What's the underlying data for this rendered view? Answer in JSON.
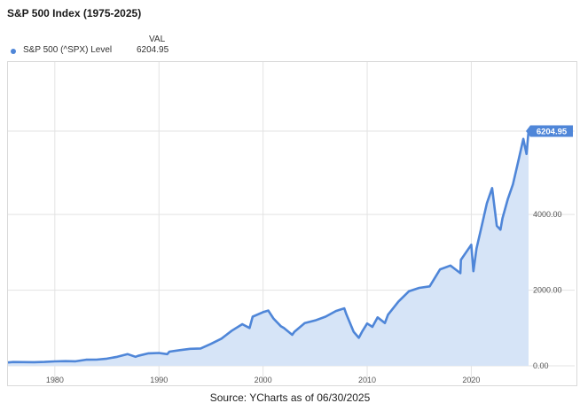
{
  "title": "S&P 500 Index (1975-2025)",
  "legend": {
    "column_header": "VAL",
    "series_label": "S&P 500 (^SPX) Level",
    "value_text": "6204.95"
  },
  "source": "Source: YCharts as of 06/30/2025",
  "colors": {
    "line": "#4f86d8",
    "fill": "#d6e4f7",
    "grid": "#e3e3e3",
    "label_bg": "#4f86d8"
  },
  "chart_data": {
    "type": "area",
    "title": "S&P 500 Index (1975-2025)",
    "xlabel": "",
    "ylabel": "",
    "xlim": [
      1975.5,
      2025.5
    ],
    "ylim": [
      0,
      6204.95
    ],
    "x_ticks": [
      1980,
      1990,
      2000,
      2010,
      2020
    ],
    "x_tick_labels": [
      "1980",
      "1990",
      "2000",
      "2010",
      "2020"
    ],
    "y_ticks": [
      0,
      2000,
      4000
    ],
    "y_tick_labels": [
      "0.00",
      "2000.00",
      "4000.00"
    ],
    "grid": true,
    "legend_position": "top-left",
    "last_value_label": "6204.95",
    "series": [
      {
        "name": "S&P 500 (^SPX) Level",
        "x": [
          1975.5,
          1976,
          1977,
          1978,
          1979,
          1980,
          1981,
          1982,
          1983,
          1984,
          1985,
          1986,
          1987,
          1987.75,
          1988,
          1989,
          1990,
          1990.8,
          1991,
          1992,
          1993,
          1994,
          1995,
          1996,
          1997,
          1998,
          1998.7,
          1999,
          2000,
          2000.5,
          2001,
          2001.7,
          2002,
          2002.8,
          2003,
          2004,
          2005,
          2006,
          2007,
          2007.8,
          2008,
          2008.7,
          2009.2,
          2009.5,
          2010,
          2010.5,
          2011,
          2011.7,
          2012,
          2013,
          2014,
          2015,
          2016,
          2017,
          2018,
          2018.95,
          2019,
          2020,
          2020.2,
          2020.5,
          2021,
          2021.5,
          2022,
          2022.45,
          2022.8,
          2023,
          2023.5,
          2024,
          2024.5,
          2025,
          2025.3,
          2025.5
        ],
        "y": [
          90,
          100,
          98,
          96,
          103,
          118,
          125,
          120,
          162,
          165,
          190,
          240,
          310,
          240,
          265,
          330,
          340,
          310,
          375,
          415,
          450,
          460,
          580,
          720,
          930,
          1100,
          1000,
          1300,
          1420,
          1460,
          1250,
          1050,
          1000,
          820,
          900,
          1130,
          1200,
          1300,
          1450,
          1520,
          1360,
          900,
          740,
          900,
          1120,
          1030,
          1280,
          1130,
          1350,
          1700,
          1970,
          2060,
          2100,
          2550,
          2650,
          2450,
          2800,
          3200,
          2500,
          3100,
          3700,
          4300,
          4700,
          3700,
          3600,
          3900,
          4400,
          4800,
          5400,
          6000,
          5600,
          6204.95
        ]
      }
    ]
  }
}
